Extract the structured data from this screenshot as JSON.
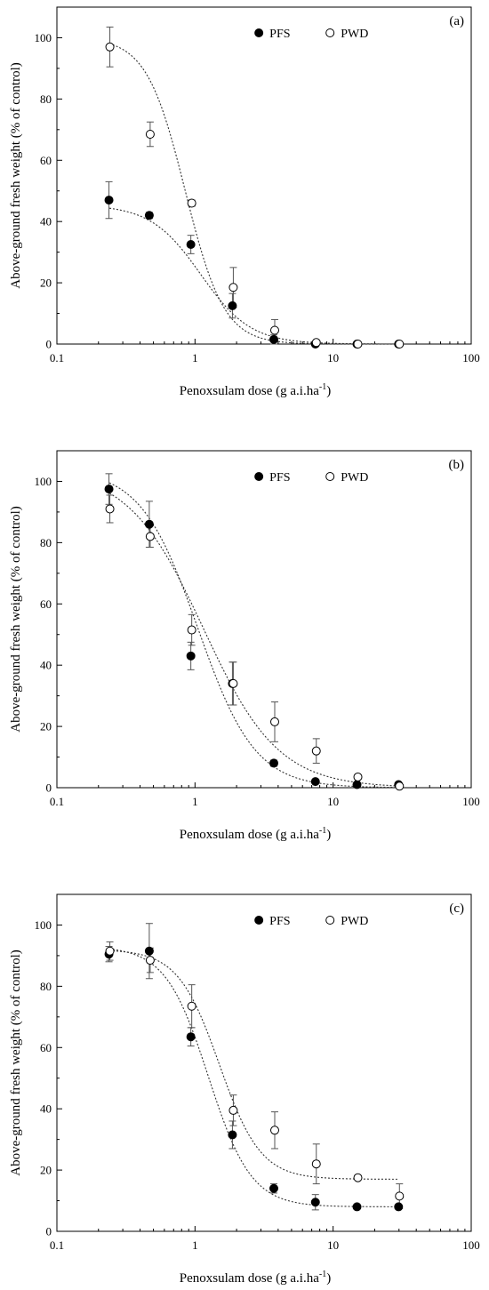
{
  "chart_data": [
    {
      "type": "scatter",
      "panel_label": "(a)",
      "xlabel": "Penoxsulam dose (g a.i.ha",
      "xlabel_sup": "-1",
      "xlabel_end": ")",
      "ylabel": "Above-ground fresh weight (% of control)",
      "x_scale": "log",
      "xlim": [
        0.1,
        100
      ],
      "ylim": [
        0,
        110
      ],
      "x_ticks": [
        0.1,
        1,
        10,
        100
      ],
      "x_tick_labels": [
        "0.1",
        "1",
        "10",
        "100"
      ],
      "y_ticks": [
        0,
        20,
        40,
        60,
        80,
        100
      ],
      "y_tick_labels": [
        "0",
        "20",
        "40",
        "60",
        "80",
        "100"
      ],
      "legend_position": "top-center",
      "series": [
        {
          "name": "PFS",
          "marker": "filled-circle",
          "x": [
            0.24,
            0.47,
            0.94,
            1.88,
            3.75,
            7.5,
            15,
            30
          ],
          "y": [
            47,
            42,
            32.5,
            12.5,
            1.5,
            0,
            0,
            0
          ],
          "err": [
            6,
            1,
            3,
            4,
            1.5,
            0,
            0,
            0
          ],
          "fit": {
            "top": 45.5,
            "bottom": 0,
            "ed50": 1.1,
            "slope": 2.4
          }
        },
        {
          "name": "PWD",
          "marker": "open-circle",
          "x": [
            0.24,
            0.47,
            0.94,
            1.88,
            3.75,
            7.5,
            15,
            30
          ],
          "y": [
            97,
            68.5,
            46,
            18.5,
            4.5,
            0.5,
            0,
            0
          ],
          "err": [
            6.5,
            4,
            1,
            6.5,
            3.5,
            0.5,
            0,
            0
          ],
          "fit": {
            "top": 100,
            "bottom": 0,
            "ed50": 0.85,
            "slope": 3.1
          }
        }
      ]
    },
    {
      "type": "scatter",
      "panel_label": "(b)",
      "xlabel": "Penoxsulam dose (g a.i.ha",
      "xlabel_sup": "-1",
      "xlabel_end": ")",
      "ylabel": "Above-ground fresh weight (% of control)",
      "x_scale": "log",
      "xlim": [
        0.1,
        100
      ],
      "ylim": [
        0,
        110
      ],
      "x_ticks": [
        0.1,
        1,
        10,
        100
      ],
      "x_tick_labels": [
        "0.1",
        "1",
        "10",
        "100"
      ],
      "y_ticks": [
        0,
        20,
        40,
        60,
        80,
        100
      ],
      "y_tick_labels": [
        "0",
        "20",
        "40",
        "60",
        "80",
        "100"
      ],
      "legend_position": "top-center",
      "series": [
        {
          "name": "PFS",
          "marker": "filled-circle",
          "x": [
            0.24,
            0.47,
            0.94,
            1.88,
            3.75,
            7.5,
            15,
            30
          ],
          "y": [
            97.5,
            86,
            43,
            34,
            8,
            2,
            1,
            1
          ],
          "err": [
            5,
            7.5,
            4.5,
            7,
            1,
            0.5,
            0.5,
            0.5
          ],
          "fit": {
            "top": 104,
            "bottom": 0,
            "ed50": 1.05,
            "slope": 2.1
          }
        },
        {
          "name": "PWD",
          "marker": "open-circle",
          "x": [
            0.24,
            0.47,
            0.94,
            1.88,
            3.75,
            7.5,
            15,
            30
          ],
          "y": [
            91,
            82,
            51.5,
            34,
            21.5,
            12,
            3.5,
            0.5
          ],
          "err": [
            4.5,
            3.5,
            5,
            7,
            6.5,
            4,
            0.5,
            0.5
          ],
          "fit": {
            "top": 104,
            "bottom": 0,
            "ed50": 1.15,
            "slope": 1.6
          }
        }
      ]
    },
    {
      "type": "scatter",
      "panel_label": "(c)",
      "xlabel": "Penoxsulam dose (g a.i.ha",
      "xlabel_sup": "-1",
      "xlabel_end": ")",
      "ylabel": "Above-ground fresh weight (% of control)",
      "x_scale": "log",
      "xlim": [
        0.1,
        100
      ],
      "ylim": [
        0,
        110
      ],
      "x_ticks": [
        0.1,
        1,
        10,
        100
      ],
      "x_tick_labels": [
        "0.1",
        "1",
        "10",
        "100"
      ],
      "y_ticks": [
        0,
        20,
        40,
        60,
        80,
        100
      ],
      "y_tick_labels": [
        "0",
        "20",
        "40",
        "60",
        "80",
        "100"
      ],
      "legend_position": "top-center",
      "series": [
        {
          "name": "PFS",
          "marker": "filled-circle",
          "x": [
            0.24,
            0.47,
            0.94,
            1.88,
            3.75,
            7.5,
            15,
            30
          ],
          "y": [
            90.5,
            91.5,
            63.5,
            31.5,
            14,
            9.5,
            8,
            8
          ],
          "err": [
            2.5,
            9,
            3,
            4.5,
            1.5,
            2.5,
            0.5,
            0.5
          ],
          "fit": {
            "top": 93,
            "bottom": 8,
            "ed50": 1.25,
            "slope": 2.8
          }
        },
        {
          "name": "PWD",
          "marker": "open-circle",
          "x": [
            0.24,
            0.47,
            0.94,
            1.88,
            3.75,
            7.5,
            15,
            30
          ],
          "y": [
            91.5,
            88.5,
            73.5,
            39.5,
            33,
            22,
            17.5,
            11.5
          ],
          "err": [
            3,
            4,
            7,
            5,
            6,
            6.5,
            0.5,
            4
          ],
          "fit": {
            "top": 92,
            "bottom": 17,
            "ed50": 1.5,
            "slope": 2.9
          }
        }
      ]
    }
  ]
}
